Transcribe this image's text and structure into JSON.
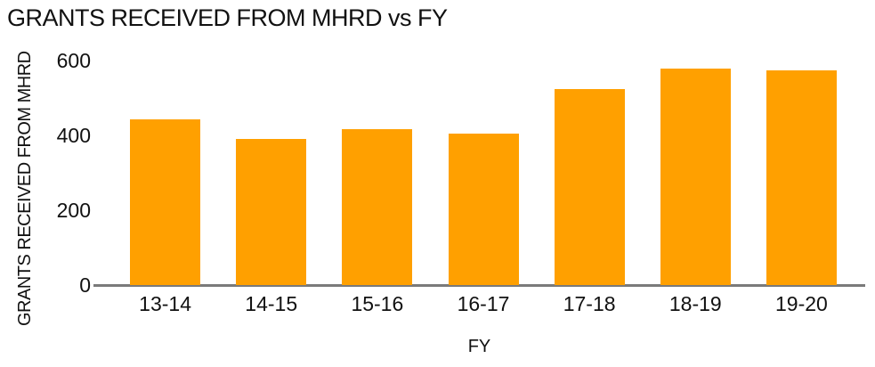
{
  "chart_data": {
    "type": "bar",
    "title": "GRANTS RECEIVED FROM MHRD vs FY",
    "xlabel": "FY",
    "ylabel": "GRANTS RECEIVED FROM MHRD",
    "categories": [
      "13-14",
      "14-15",
      "15-16",
      "16-17",
      "17-18",
      "18-19",
      "19-20"
    ],
    "values": [
      443,
      390,
      417,
      405,
      523,
      578,
      574
    ],
    "yticks": [
      0,
      200,
      400,
      600
    ],
    "ylim": [
      0,
      600
    ],
    "grid": false,
    "legend": false,
    "colors": {
      "bar": "#FFA000",
      "axis_line": "#7a7a7a",
      "text": "#111111",
      "background": "#ffffff"
    }
  }
}
